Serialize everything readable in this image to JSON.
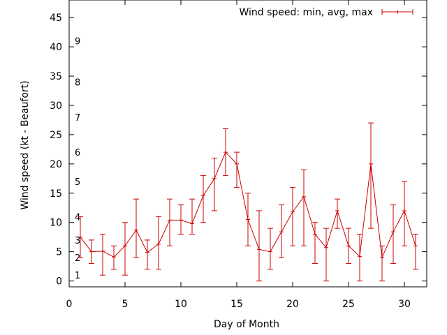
{
  "chart_data": {
    "type": "line",
    "title": "",
    "xlabel": "Day of Month",
    "ylabel": "Wind speed (kt - Beaufort)",
    "xlim": [
      0,
      32
    ],
    "ylim": [
      -1,
      48
    ],
    "x_ticks": [
      0,
      5,
      10,
      15,
      20,
      25,
      30
    ],
    "y_ticks": [
      0,
      5,
      10,
      15,
      20,
      25,
      30,
      35,
      40,
      45
    ],
    "grid": false,
    "legend_position": "top-right",
    "beaufort_labels": [
      {
        "label": "1",
        "kt": 1
      },
      {
        "label": "2",
        "kt": 4
      },
      {
        "label": "3",
        "kt": 7
      },
      {
        "label": "4",
        "kt": 11
      },
      {
        "label": "5",
        "kt": 17
      },
      {
        "label": "6",
        "kt": 22
      },
      {
        "label": "7",
        "kt": 28
      },
      {
        "label": "8",
        "kt": 34
      },
      {
        "label": "9",
        "kt": 41
      }
    ],
    "series": [
      {
        "name": "Wind speed: min, avg, max",
        "color": "#cc0000",
        "x": [
          1,
          2,
          3,
          4,
          5,
          6,
          7,
          8,
          9,
          10,
          11,
          12,
          13,
          14,
          15,
          16,
          17,
          18,
          19,
          20,
          21,
          22,
          23,
          24,
          25,
          26,
          27,
          28,
          29,
          30,
          31
        ],
        "avg": [
          7.5,
          5,
          5.1,
          4.1,
          6,
          8.7,
          4.9,
          6.3,
          10.4,
          10.4,
          9.8,
          14.6,
          17.5,
          22,
          20,
          10.5,
          5.4,
          5,
          8.4,
          11.8,
          14.4,
          8,
          5.7,
          12,
          6,
          4.2,
          20,
          4,
          8.4,
          12,
          6
        ],
        "min": [
          4,
          3,
          1,
          2,
          1,
          4,
          2,
          2,
          6,
          8,
          8,
          10,
          12,
          18,
          16,
          6,
          0,
          2,
          4,
          6,
          6,
          3,
          0,
          9,
          3,
          0,
          9,
          0,
          3,
          6,
          2
        ],
        "max": [
          11,
          7,
          8,
          6,
          10,
          14,
          7,
          11,
          14,
          13,
          14,
          18,
          21,
          26,
          22,
          15,
          12,
          9,
          13,
          16,
          19,
          10,
          9,
          14,
          9,
          8,
          27,
          6,
          13,
          17,
          8
        ]
      }
    ]
  }
}
